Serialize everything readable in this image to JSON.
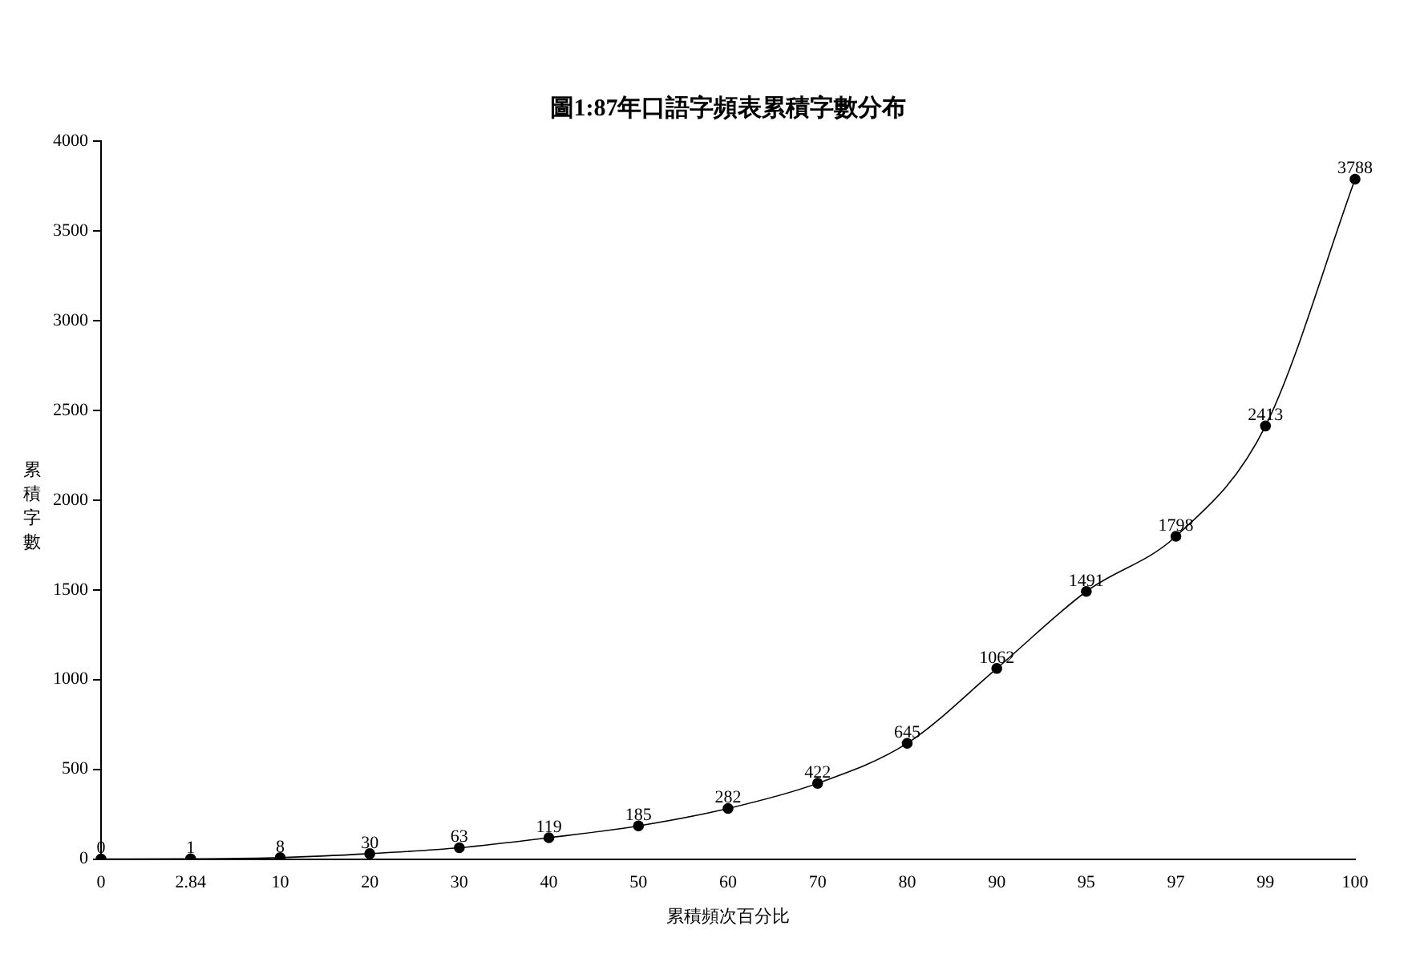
{
  "chart_data": {
    "type": "line",
    "title": "圖1:87年口語字頻表累積字數分布",
    "xlabel": "累積頻次百分比",
    "ylabel": "累積字數",
    "categories": [
      "0",
      "2.84",
      "10",
      "20",
      "30",
      "40",
      "50",
      "60",
      "70",
      "80",
      "90",
      "95",
      "97",
      "99",
      "100"
    ],
    "series": [
      {
        "color": "#000000",
        "values": [
          0,
          1,
          8,
          30,
          63,
          119,
          185,
          282,
          422,
          645,
          1062,
          1491,
          1798,
          2413,
          3788
        ]
      }
    ],
    "ylim": [
      0,
      4000
    ],
    "yticks": [
      0,
      500,
      1000,
      1500,
      2000,
      2500,
      3000,
      3500,
      4000
    ],
    "grid": false,
    "legend": false,
    "marker": "circle",
    "line_style": "solid",
    "data_labels": true
  }
}
